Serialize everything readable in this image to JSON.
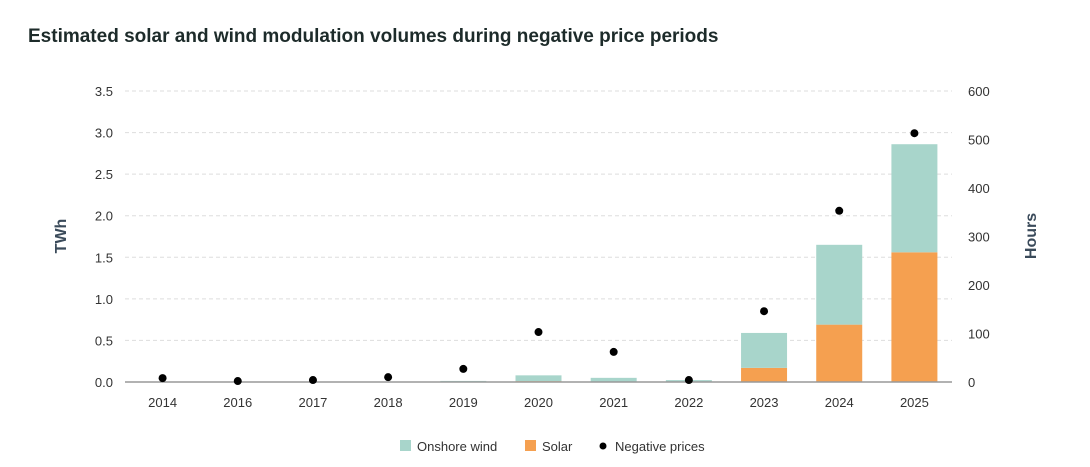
{
  "chart_data": {
    "type": "bar",
    "title": "Estimated solar and wind modulation volumes during negative price periods",
    "categories": [
      "2014",
      "2016",
      "2017",
      "2018",
      "2019",
      "2020",
      "2021",
      "2022",
      "2023",
      "2024",
      "2025"
    ],
    "series": [
      {
        "name": "Solar",
        "axis": "left",
        "kind": "stacked-bar",
        "color": "#f5a050",
        "values": [
          0,
          0,
          0,
          0,
          0.003,
          0.01,
          0.005,
          0.003,
          0.17,
          0.69,
          1.56
        ]
      },
      {
        "name": "Onshore wind",
        "axis": "left",
        "kind": "stacked-bar",
        "color": "#a8d5cb",
        "values": [
          0,
          0,
          0,
          0,
          0.01,
          0.07,
          0.045,
          0.02,
          0.42,
          0.96,
          1.3
        ]
      },
      {
        "name": "Negative prices",
        "axis": "right",
        "kind": "scatter",
        "color": "#000000",
        "values": [
          8,
          2,
          4,
          10,
          27,
          103,
          62,
          4,
          146,
          353,
          513
        ]
      }
    ],
    "ylabel": "TWh",
    "ylim": [
      0,
      3.5
    ],
    "yticks": [
      "0.0",
      "0.5",
      "1.0",
      "1.5",
      "2.0",
      "2.5",
      "3.0",
      "3.5"
    ],
    "y2label": "Hours",
    "y2lim": [
      0,
      600
    ],
    "y2ticks": [
      "0",
      "100",
      "200",
      "300",
      "400",
      "500",
      "600"
    ],
    "legend": {
      "position": "bottom",
      "entries": [
        "Onshore wind",
        "Solar",
        "Negative prices"
      ]
    },
    "grid": "horizontal dashed"
  }
}
